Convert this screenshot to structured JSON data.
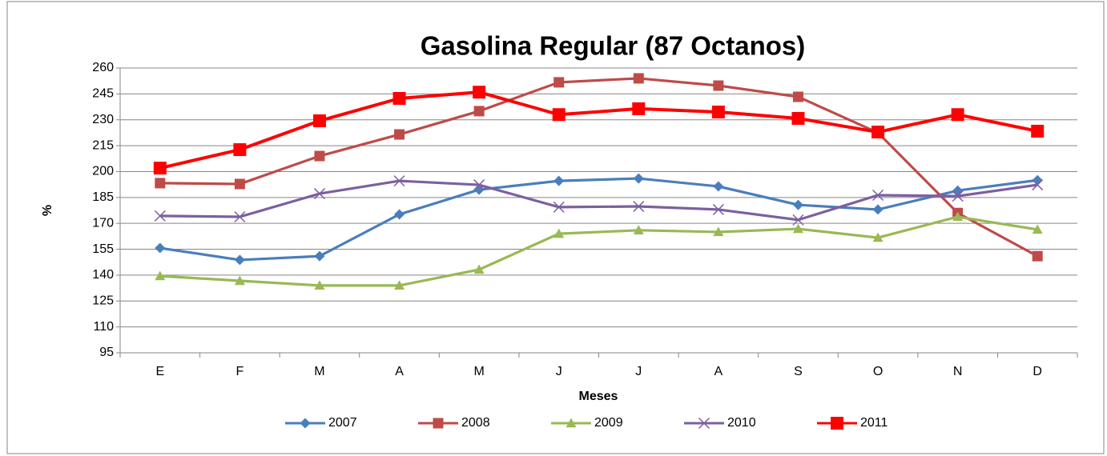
{
  "chart_data": {
    "type": "line",
    "title": "Gasolina Regular (87 Octanos)",
    "x_label": "Meses",
    "y_label": "%",
    "categories": [
      "E",
      "F",
      "M",
      "A",
      "M",
      "J",
      "J",
      "A",
      "S",
      "O",
      "N",
      "D"
    ],
    "ylim": [
      95,
      260
    ],
    "yticks": [
      95,
      110,
      125,
      140,
      155,
      170,
      185,
      200,
      215,
      230,
      245,
      260
    ],
    "grid": true,
    "legend": "bottom",
    "series": [
      {
        "name": "2007",
        "color": "#4a7ebb",
        "marker": "diamond",
        "values": [
          155.7,
          148.8,
          151,
          175.2,
          189.5,
          194.6,
          196,
          191.4,
          180.7,
          178,
          189,
          195
        ]
      },
      {
        "name": "2008",
        "color": "#be4b48",
        "marker": "square",
        "values": [
          193.3,
          192.8,
          209,
          221.5,
          235,
          251.7,
          254,
          249.8,
          243.3,
          222.5,
          176,
          151
        ]
      },
      {
        "name": "2009",
        "color": "#98b954",
        "marker": "triangle",
        "values": [
          139.5,
          136.7,
          134,
          134,
          143.2,
          164,
          166,
          165,
          166.8,
          161.7,
          173.8,
          166.4
        ]
      },
      {
        "name": "2010",
        "color": "#7d5fa0",
        "marker": "x",
        "values": [
          174.3,
          173.8,
          187.2,
          194.6,
          192.3,
          179.4,
          179.8,
          178,
          172,
          186.3,
          185.8,
          192.3
        ]
      },
      {
        "name": "2011",
        "color": "#ff0000",
        "marker": "square",
        "values": [
          202,
          212.7,
          229.4,
          242.4,
          246,
          233,
          236.4,
          234.5,
          230.8,
          222.9,
          233,
          223.4
        ]
      }
    ]
  }
}
